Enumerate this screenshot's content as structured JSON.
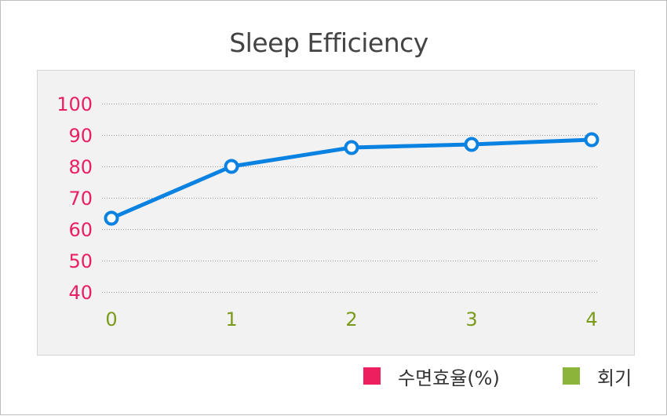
{
  "chart_data": {
    "type": "line",
    "title": "Sleep Efficiency",
    "x": [
      0,
      1,
      2,
      3,
      4
    ],
    "series": [
      {
        "values": [
          63.5,
          80,
          86,
          87,
          88.5
        ]
      }
    ],
    "ylim": [
      40,
      100
    ],
    "y_ticks": [
      100,
      90,
      80,
      70,
      60,
      50,
      40
    ],
    "x_ticks": [
      "0",
      "1",
      "2",
      "3",
      "4"
    ],
    "grid": "horizontal dotted",
    "colors": {
      "line": "#0a82e2",
      "y_tick_text": "#e91e63",
      "x_tick_text": "#7a9a1a",
      "plot_background": "#f2f2f2"
    }
  },
  "legend": [
    {
      "label": "수면효율(%)",
      "color": "#ee1f5e"
    },
    {
      "label": "회기",
      "color": "#8db43a"
    }
  ]
}
